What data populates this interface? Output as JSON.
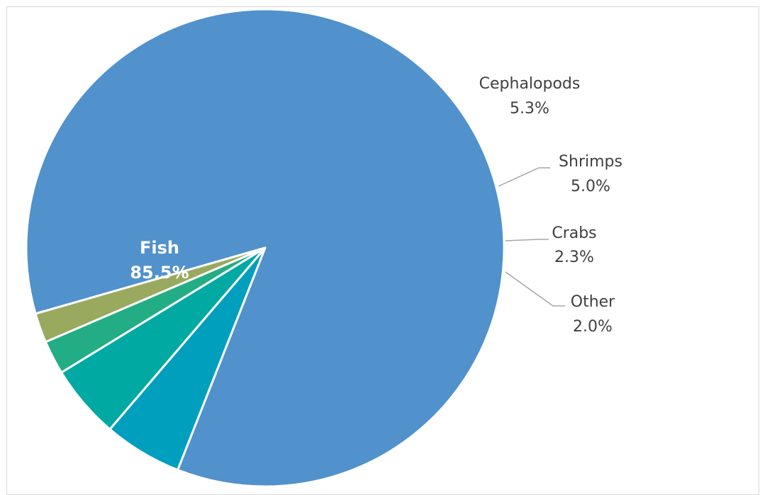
{
  "chart_data": {
    "type": "pie",
    "slices": [
      {
        "label": "Fish",
        "value": 85.5,
        "value_label": "85.5%",
        "color": "#5191cc"
      },
      {
        "label": "Cephalopods",
        "value": 5.3,
        "value_label": "5.3%",
        "color": "#009fbd"
      },
      {
        "label": "Shrimps",
        "value": 5.0,
        "value_label": "5.0%",
        "color": "#00a9a2"
      },
      {
        "label": "Crabs",
        "value": 2.3,
        "value_label": "2.3%",
        "color": "#23ad84"
      },
      {
        "label": "Other",
        "value": 2.0,
        "value_label": "2.0%",
        "color": "#99a95d"
      }
    ],
    "legend": "none",
    "data_labels": "category name and percentage"
  }
}
